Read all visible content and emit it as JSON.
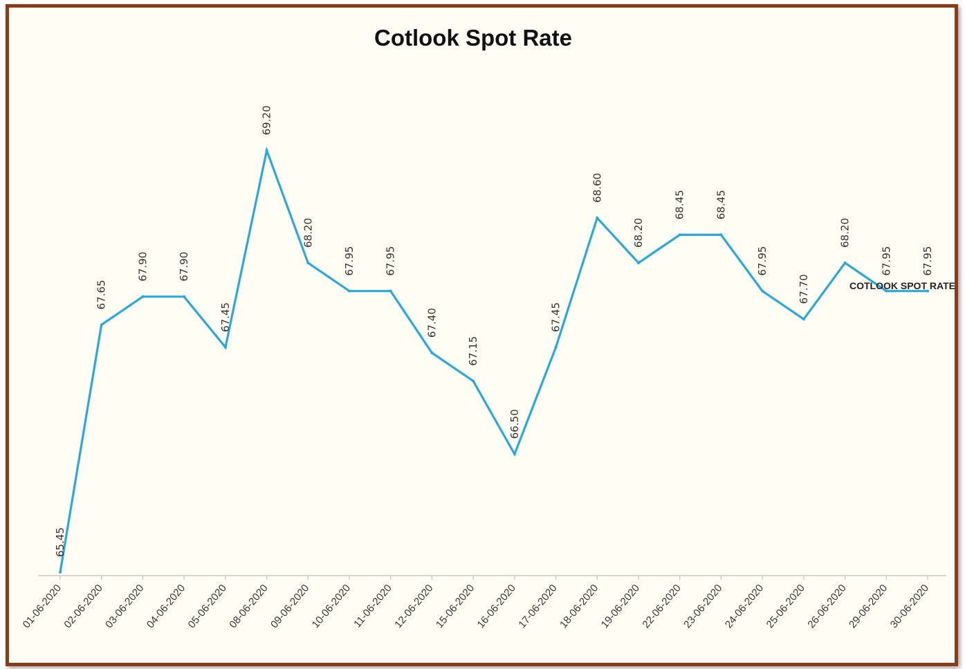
{
  "chart_data": {
    "type": "line",
    "title": "Cotlook Spot Rate",
    "xlabel": "",
    "ylabel": "",
    "ylim": [
      65.42,
      69.75
    ],
    "grid": false,
    "legend": "none",
    "series_label_placement": "end-of-line",
    "categories": [
      "01-06-2020",
      "02-06-2020",
      "03-06-2020",
      "04-06-2020",
      "05-06-2020",
      "08-06-2020",
      "09-06-2020",
      "10-06-2020",
      "11-06-2020",
      "12-06-2020",
      "15-06-2020",
      "16-06-2020",
      "17-06-2020",
      "18-06-2020",
      "19-06-2020",
      "22-06-2020",
      "23-06-2020",
      "24-06-2020",
      "25-06-2020",
      "26-06-2020",
      "29-06-2020",
      "30-06-2020"
    ],
    "series": [
      {
        "name": "COTLOOK SPOT RATE",
        "color": "#29a8df",
        "values": [
          65.45,
          67.65,
          67.9,
          67.9,
          67.45,
          69.2,
          68.2,
          67.95,
          67.95,
          67.4,
          67.15,
          66.5,
          67.45,
          68.6,
          68.2,
          68.45,
          68.45,
          67.95,
          67.7,
          68.2,
          67.95,
          67.95
        ],
        "value_labels": [
          "65.45",
          "67.65",
          "67.90",
          "67.90",
          "67.45",
          "69.20",
          "68.20",
          "67.95",
          "67.95",
          "67.40",
          "67.15",
          "66.50",
          "67.45",
          "68.60",
          "68.20",
          "68.45",
          "68.45",
          "67.95",
          "67.70",
          "68.20",
          "67.95",
          "67.95"
        ]
      }
    ]
  }
}
